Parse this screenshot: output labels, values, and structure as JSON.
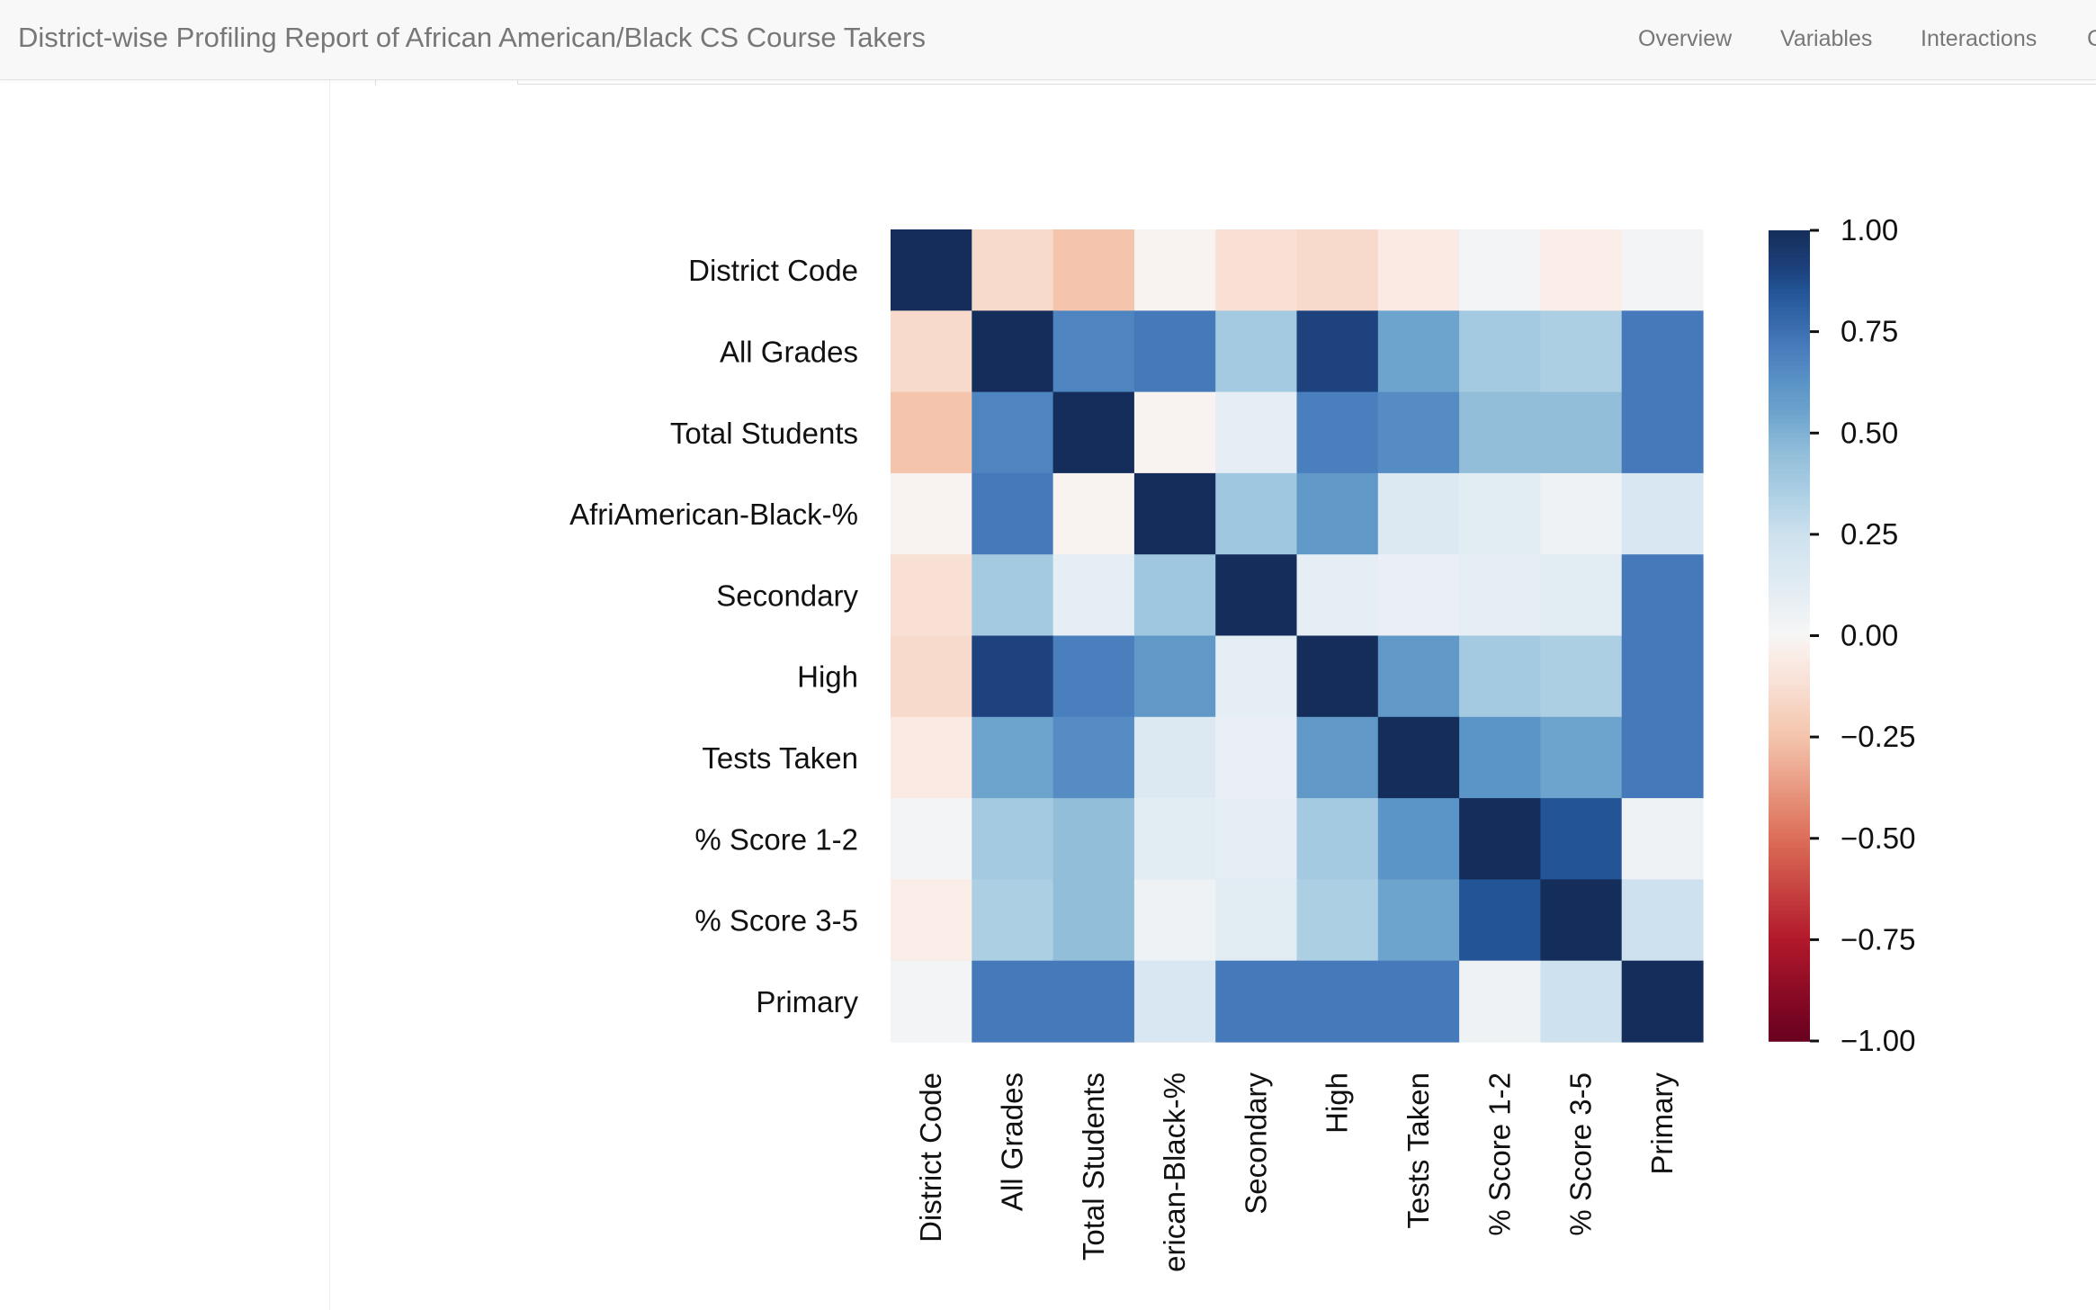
{
  "header": {
    "title": "District-wise Profiling Report of African American/Black CS Course Takers",
    "nav": [
      "Overview",
      "Variables",
      "Interactions",
      "C"
    ]
  },
  "chart_data": {
    "type": "heatmap",
    "variables": [
      "District Code",
      "All Grades",
      "Total Students",
      "AfriAmerican-Black-%",
      "Secondary",
      "High",
      "Tests Taken",
      "% Score 1-2",
      "% Score 3-5",
      "Primary"
    ],
    "x_tick_labels": [
      "District Code",
      "All Grades",
      "Total Students",
      "erican-Black-%",
      "Secondary",
      "High",
      "Tests Taken",
      "% Score 1-2",
      "% Score 3-5",
      "Primary"
    ],
    "matrix": [
      [
        1.0,
        -0.15,
        -0.25,
        -0.02,
        -0.12,
        -0.15,
        -0.06,
        0.03,
        -0.05,
        0.02
      ],
      [
        -0.15,
        1.0,
        0.68,
        0.72,
        0.38,
        0.9,
        0.55,
        0.38,
        0.35,
        0.72
      ],
      [
        -0.25,
        0.68,
        1.0,
        -0.02,
        0.1,
        0.7,
        0.65,
        0.45,
        0.45,
        0.72
      ],
      [
        -0.02,
        0.72,
        -0.02,
        1.0,
        0.4,
        0.6,
        0.15,
        0.12,
        0.05,
        0.18
      ],
      [
        -0.12,
        0.38,
        0.1,
        0.4,
        1.0,
        0.1,
        0.08,
        0.1,
        0.12,
        0.72
      ],
      [
        -0.15,
        0.9,
        0.7,
        0.6,
        0.1,
        1.0,
        0.6,
        0.38,
        0.35,
        0.72
      ],
      [
        -0.06,
        0.55,
        0.65,
        0.15,
        0.08,
        0.6,
        1.0,
        0.62,
        0.55,
        0.72
      ],
      [
        0.03,
        0.38,
        0.45,
        0.12,
        0.1,
        0.38,
        0.62,
        1.0,
        0.85,
        0.05
      ],
      [
        -0.05,
        0.35,
        0.45,
        0.05,
        0.12,
        0.35,
        0.55,
        0.85,
        1.0,
        0.25
      ],
      [
        0.02,
        0.72,
        0.72,
        0.18,
        0.72,
        0.72,
        0.72,
        0.05,
        0.25,
        1.0
      ]
    ],
    "colorbar": {
      "range": [
        -1.0,
        1.0
      ],
      "ticks": [
        "1.00",
        "0.75",
        "0.50",
        "0.25",
        "0.00",
        "−0.25",
        "−0.50",
        "−0.75",
        "−1.00"
      ],
      "colormap": "RdBu"
    }
  }
}
